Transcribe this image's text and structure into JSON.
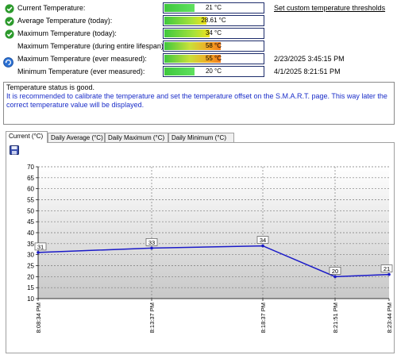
{
  "rows": [
    {
      "label": "Current Temperature:",
      "value": "21 °C",
      "fill": 0.3,
      "gradient": "green",
      "icon": "check",
      "extra": "Set custom temperature thresholds",
      "extra_link": true
    },
    {
      "label": "Average Temperature (today):",
      "value": "28.61 °C",
      "fill": 0.42,
      "gradient": "green-yellow",
      "icon": "check",
      "extra": "",
      "extra_link": false
    },
    {
      "label": "Maximum Temperature (today):",
      "value": "34 °C",
      "fill": 0.45,
      "gradient": "green-yellow",
      "icon": "check",
      "extra": "",
      "extra_link": false
    },
    {
      "label": "Maximum Temperature (during entire lifespan):",
      "value": "58 °C",
      "fill": 0.56,
      "gradient": "green-orange",
      "icon": "none",
      "extra": "",
      "extra_link": false
    },
    {
      "label": "Maximum Temperature (ever measured):",
      "value": "55 °C",
      "fill": 0.56,
      "gradient": "green-orange",
      "icon": "none",
      "extra": "2/23/2025 3:45:15 PM",
      "extra_link": false
    },
    {
      "label": "Minimum Temperature (ever measured):",
      "value": "20 °C",
      "fill": 0.3,
      "gradient": "green",
      "icon": "none",
      "extra": "4/1/2025 8:21:51 PM",
      "extra_link": false
    }
  ],
  "message": {
    "status": "Temperature status is good.",
    "hint": "It is recommended to calibrate the temperature and set the temperature offset on the S.M.A.R.T. page. This way later the correct temperature value will be displayed."
  },
  "tabs": [
    {
      "label": "Current (°C)",
      "active": true
    },
    {
      "label": "Daily Average (°C)",
      "active": false
    },
    {
      "label": "Daily Maximum (°C)",
      "active": false
    },
    {
      "label": "Daily Minimum (°C)",
      "active": false
    }
  ],
  "chart_data": {
    "type": "line",
    "x": [
      "8:08:34 PM",
      "8:13:37 PM",
      "8:18:37 PM",
      "8:21:51 PM",
      "8:23:44 PM"
    ],
    "values": [
      31,
      33,
      34,
      20,
      21
    ],
    "ylim": [
      10,
      70
    ],
    "yticks": [
      10,
      15,
      20,
      25,
      30,
      35,
      40,
      45,
      50,
      55,
      60,
      65,
      70
    ],
    "line_color": "#1a1ac8",
    "grid": true
  }
}
